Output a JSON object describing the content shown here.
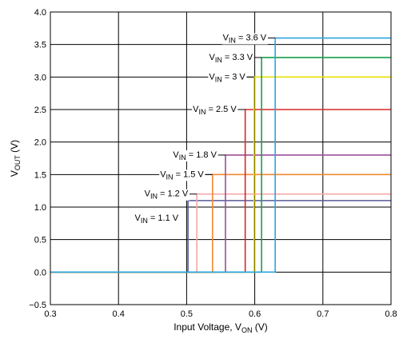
{
  "chart_data": {
    "type": "line",
    "title": "",
    "xlabel": {
      "main": "Input Voltage, V",
      "sub": "ON",
      "unit": " (V)"
    },
    "ylabel": {
      "main": "V",
      "sub": "OUT",
      "unit": " (V)"
    },
    "xlim": [
      0.3,
      0.8
    ],
    "ylim": [
      -0.5,
      4.0
    ],
    "xticks": [
      0.3,
      0.4,
      0.5,
      0.6,
      0.7,
      0.8
    ],
    "xtick_labels": [
      "0.3",
      "0.4",
      "0.5",
      "0.6",
      "0.7",
      "0.8"
    ],
    "yticks": [
      -0.5,
      0.0,
      0.5,
      1.0,
      1.5,
      2.0,
      2.5,
      3.0,
      3.5,
      4.0
    ],
    "ytick_labels": [
      "−0.5",
      "0.0",
      "0.5",
      "1.0",
      "1.5",
      "2.0",
      "2.5",
      "3.0",
      "3.5",
      "4.0"
    ],
    "grid": true,
    "series": [
      {
        "label_main": "V",
        "label_sub": "IN",
        "label_rest": " = 1.1 V",
        "color": "#5a5a9c",
        "v_on": 0.502,
        "v_out": 1.1
      },
      {
        "label_main": "V",
        "label_sub": "IN",
        "label_rest": " = 1.2 V",
        "color": "#f4a7a7",
        "v_on": 0.515,
        "v_out": 1.2
      },
      {
        "label_main": "V",
        "label_sub": "IN",
        "label_rest": " = 1.5 V",
        "color": "#f08a30",
        "v_on": 0.538,
        "v_out": 1.5
      },
      {
        "label_main": "V",
        "label_sub": "IN",
        "label_rest": " = 1.8 V",
        "color": "#9b4f96",
        "v_on": 0.557,
        "v_out": 1.8
      },
      {
        "label_main": "V",
        "label_sub": "IN",
        "label_rest": " = 2.5 V",
        "color": "#d62828",
        "v_on": 0.586,
        "v_out": 2.5
      },
      {
        "label_main": "V",
        "label_sub": "IN",
        "label_rest": " = 3 V",
        "color": "#e8e000",
        "v_on": 0.599,
        "v_out": 3.0
      },
      {
        "label_main": "V",
        "label_sub": "IN",
        "label_rest": " = 3.3 V",
        "color": "#1a9f4a",
        "v_on": 0.61,
        "v_out": 3.3
      },
      {
        "label_main": "V",
        "label_sub": "IN",
        "label_rest": " = 3.6 V",
        "color": "#2aa6dc",
        "v_on": 0.63,
        "v_out": 3.6
      }
    ]
  }
}
